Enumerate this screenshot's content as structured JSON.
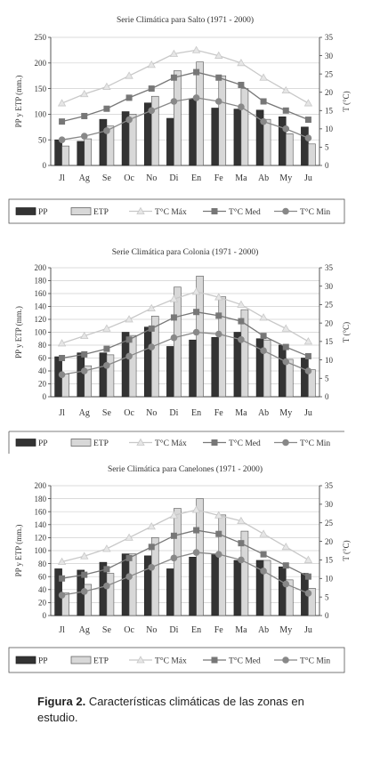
{
  "legend_labels": [
    "PP",
    "ETP",
    "T°C Máx",
    "T°C Med",
    "T°C Min"
  ],
  "caption": {
    "label": "Figura 2.",
    "text": "Características climáticas de las zonas en estudio."
  },
  "chart_data": [
    {
      "type": "bar",
      "title": "Serie Climática para Salto (1971 - 2000)",
      "categories": [
        "Jl",
        "Ag",
        "Se",
        "Oc",
        "No",
        "Di",
        "En",
        "Fe",
        "Ma",
        "Ab",
        "My",
        "Ju"
      ],
      "ylabel": "PP y ETP (mm.)",
      "y2label": "T (°C)",
      "ylim": [
        0,
        250
      ],
      "yticks": [
        0,
        50,
        100,
        150,
        200,
        250
      ],
      "y2lim": [
        0,
        35
      ],
      "y2ticks": [
        0,
        5,
        10,
        15,
        20,
        25,
        30,
        35
      ],
      "legend_position": "bottom",
      "series": [
        {
          "name": "PP",
          "kind": "bar",
          "axis": "left",
          "color": "#333333",
          "values": [
            50,
            47,
            90,
            105,
            122,
            92,
            130,
            112,
            110,
            108,
            95,
            75
          ]
        },
        {
          "name": "ETP",
          "kind": "bar",
          "axis": "left",
          "color": "#d8d8d8",
          "values": [
            38,
            52,
            77,
            100,
            135,
            185,
            202,
            175,
            150,
            90,
            62,
            42
          ]
        },
        {
          "name": "T°C Máx",
          "kind": "line",
          "axis": "right",
          "color": "#c8c8c8",
          "marker": "triangle",
          "values": [
            17,
            19.5,
            21.5,
            24.5,
            27.5,
            30.5,
            31.5,
            30,
            28,
            24,
            20.5,
            17
          ]
        },
        {
          "name": "T°C Med",
          "kind": "line",
          "axis": "right",
          "color": "#777777",
          "marker": "square",
          "values": [
            12,
            13.5,
            15.5,
            18.5,
            21,
            24,
            25.5,
            24,
            22,
            17.5,
            15,
            12.5
          ]
        },
        {
          "name": "T°C Min",
          "kind": "line",
          "axis": "right",
          "color": "#888888",
          "marker": "circle",
          "values": [
            7,
            8,
            9.5,
            12.5,
            15,
            17.5,
            18.5,
            17.5,
            16,
            12,
            10,
            7.5
          ]
        }
      ]
    },
    {
      "type": "bar",
      "title": "Serie Climática para Colonia (1971 - 2000)",
      "categories": [
        "Jl",
        "Ag",
        "Se",
        "Oc",
        "No",
        "Di",
        "En",
        "Fe",
        "Ma",
        "Ab",
        "My",
        "Ju"
      ],
      "ylabel": "PP y ETP (mm.)",
      "y2label": "T (°C)",
      "ylim": [
        0,
        200
      ],
      "yticks": [
        0,
        20,
        40,
        60,
        80,
        100,
        120,
        140,
        160,
        180,
        200
      ],
      "y2lim": [
        0,
        35
      ],
      "y2ticks": [
        0,
        5,
        10,
        15,
        20,
        25,
        30,
        35
      ],
      "legend_position": "bottom",
      "series": [
        {
          "name": "PP",
          "kind": "bar",
          "axis": "left",
          "color": "#333333",
          "values": [
            62,
            68,
            68,
            100,
            108,
            78,
            88,
            92,
            100,
            90,
            80,
            60
          ]
        },
        {
          "name": "ETP",
          "kind": "bar",
          "axis": "left",
          "color": "#d8d8d8",
          "values": [
            35,
            48,
            65,
            95,
            125,
            170,
            187,
            155,
            135,
            88,
            58,
            42
          ]
        },
        {
          "name": "T°C Máx",
          "kind": "line",
          "axis": "right",
          "color": "#c8c8c8",
          "marker": "triangle",
          "values": [
            14.5,
            16.5,
            18.5,
            21,
            24,
            26.5,
            28.5,
            27,
            25,
            21.5,
            18.5,
            15
          ]
        },
        {
          "name": "T°C Med",
          "kind": "line",
          "axis": "right",
          "color": "#777777",
          "marker": "square",
          "values": [
            10.5,
            11.5,
            13,
            15.5,
            18.5,
            21.5,
            23,
            22,
            20.5,
            16.5,
            13.5,
            11
          ]
        },
        {
          "name": "T°C Min",
          "kind": "line",
          "axis": "right",
          "color": "#888888",
          "marker": "circle",
          "values": [
            6,
            7,
            8.5,
            11,
            13.5,
            16,
            17.5,
            17,
            15.5,
            12.5,
            9.5,
            7
          ]
        }
      ]
    },
    {
      "type": "bar",
      "title": "Serie Climática para Canelones (1971 - 2000)",
      "categories": [
        "Jl",
        "Ag",
        "Se",
        "Oc",
        "No",
        "Di",
        "En",
        "Fe",
        "Ma",
        "Ab",
        "My",
        "Ju"
      ],
      "ylabel": "PP y ETP (mm.)",
      "y2label": "T (°C)",
      "ylim": [
        0,
        200
      ],
      "yticks": [
        0,
        20,
        40,
        60,
        80,
        100,
        120,
        140,
        160,
        180,
        200
      ],
      "y2lim": [
        0,
        35
      ],
      "y2ticks": [
        0,
        5,
        10,
        15,
        20,
        25,
        30,
        35
      ],
      "legend_position": "bottom",
      "series": [
        {
          "name": "PP",
          "kind": "bar",
          "axis": "left",
          "color": "#333333",
          "values": [
            72,
            70,
            82,
            95,
            92,
            72,
            90,
            95,
            85,
            85,
            75,
            65
          ]
        },
        {
          "name": "ETP",
          "kind": "bar",
          "axis": "left",
          "color": "#d8d8d8",
          "values": [
            35,
            48,
            65,
            95,
            120,
            165,
            180,
            155,
            130,
            85,
            55,
            42
          ]
        },
        {
          "name": "T°C Máx",
          "kind": "line",
          "axis": "right",
          "color": "#c8c8c8",
          "marker": "triangle",
          "values": [
            14.5,
            16,
            18,
            21,
            24,
            27,
            28.5,
            27,
            25.5,
            22,
            18.5,
            15
          ]
        },
        {
          "name": "T°C Med",
          "kind": "line",
          "axis": "right",
          "color": "#777777",
          "marker": "square",
          "values": [
            10,
            11,
            12.5,
            15.5,
            18.5,
            21.5,
            23,
            22,
            19.5,
            16.5,
            13.5,
            10.5
          ]
        },
        {
          "name": "T°C Min",
          "kind": "line",
          "axis": "right",
          "color": "#888888",
          "marker": "circle",
          "values": [
            5.5,
            6.5,
            8,
            10.5,
            13,
            15.5,
            17,
            16.5,
            15,
            12,
            8.5,
            6
          ]
        }
      ]
    }
  ]
}
